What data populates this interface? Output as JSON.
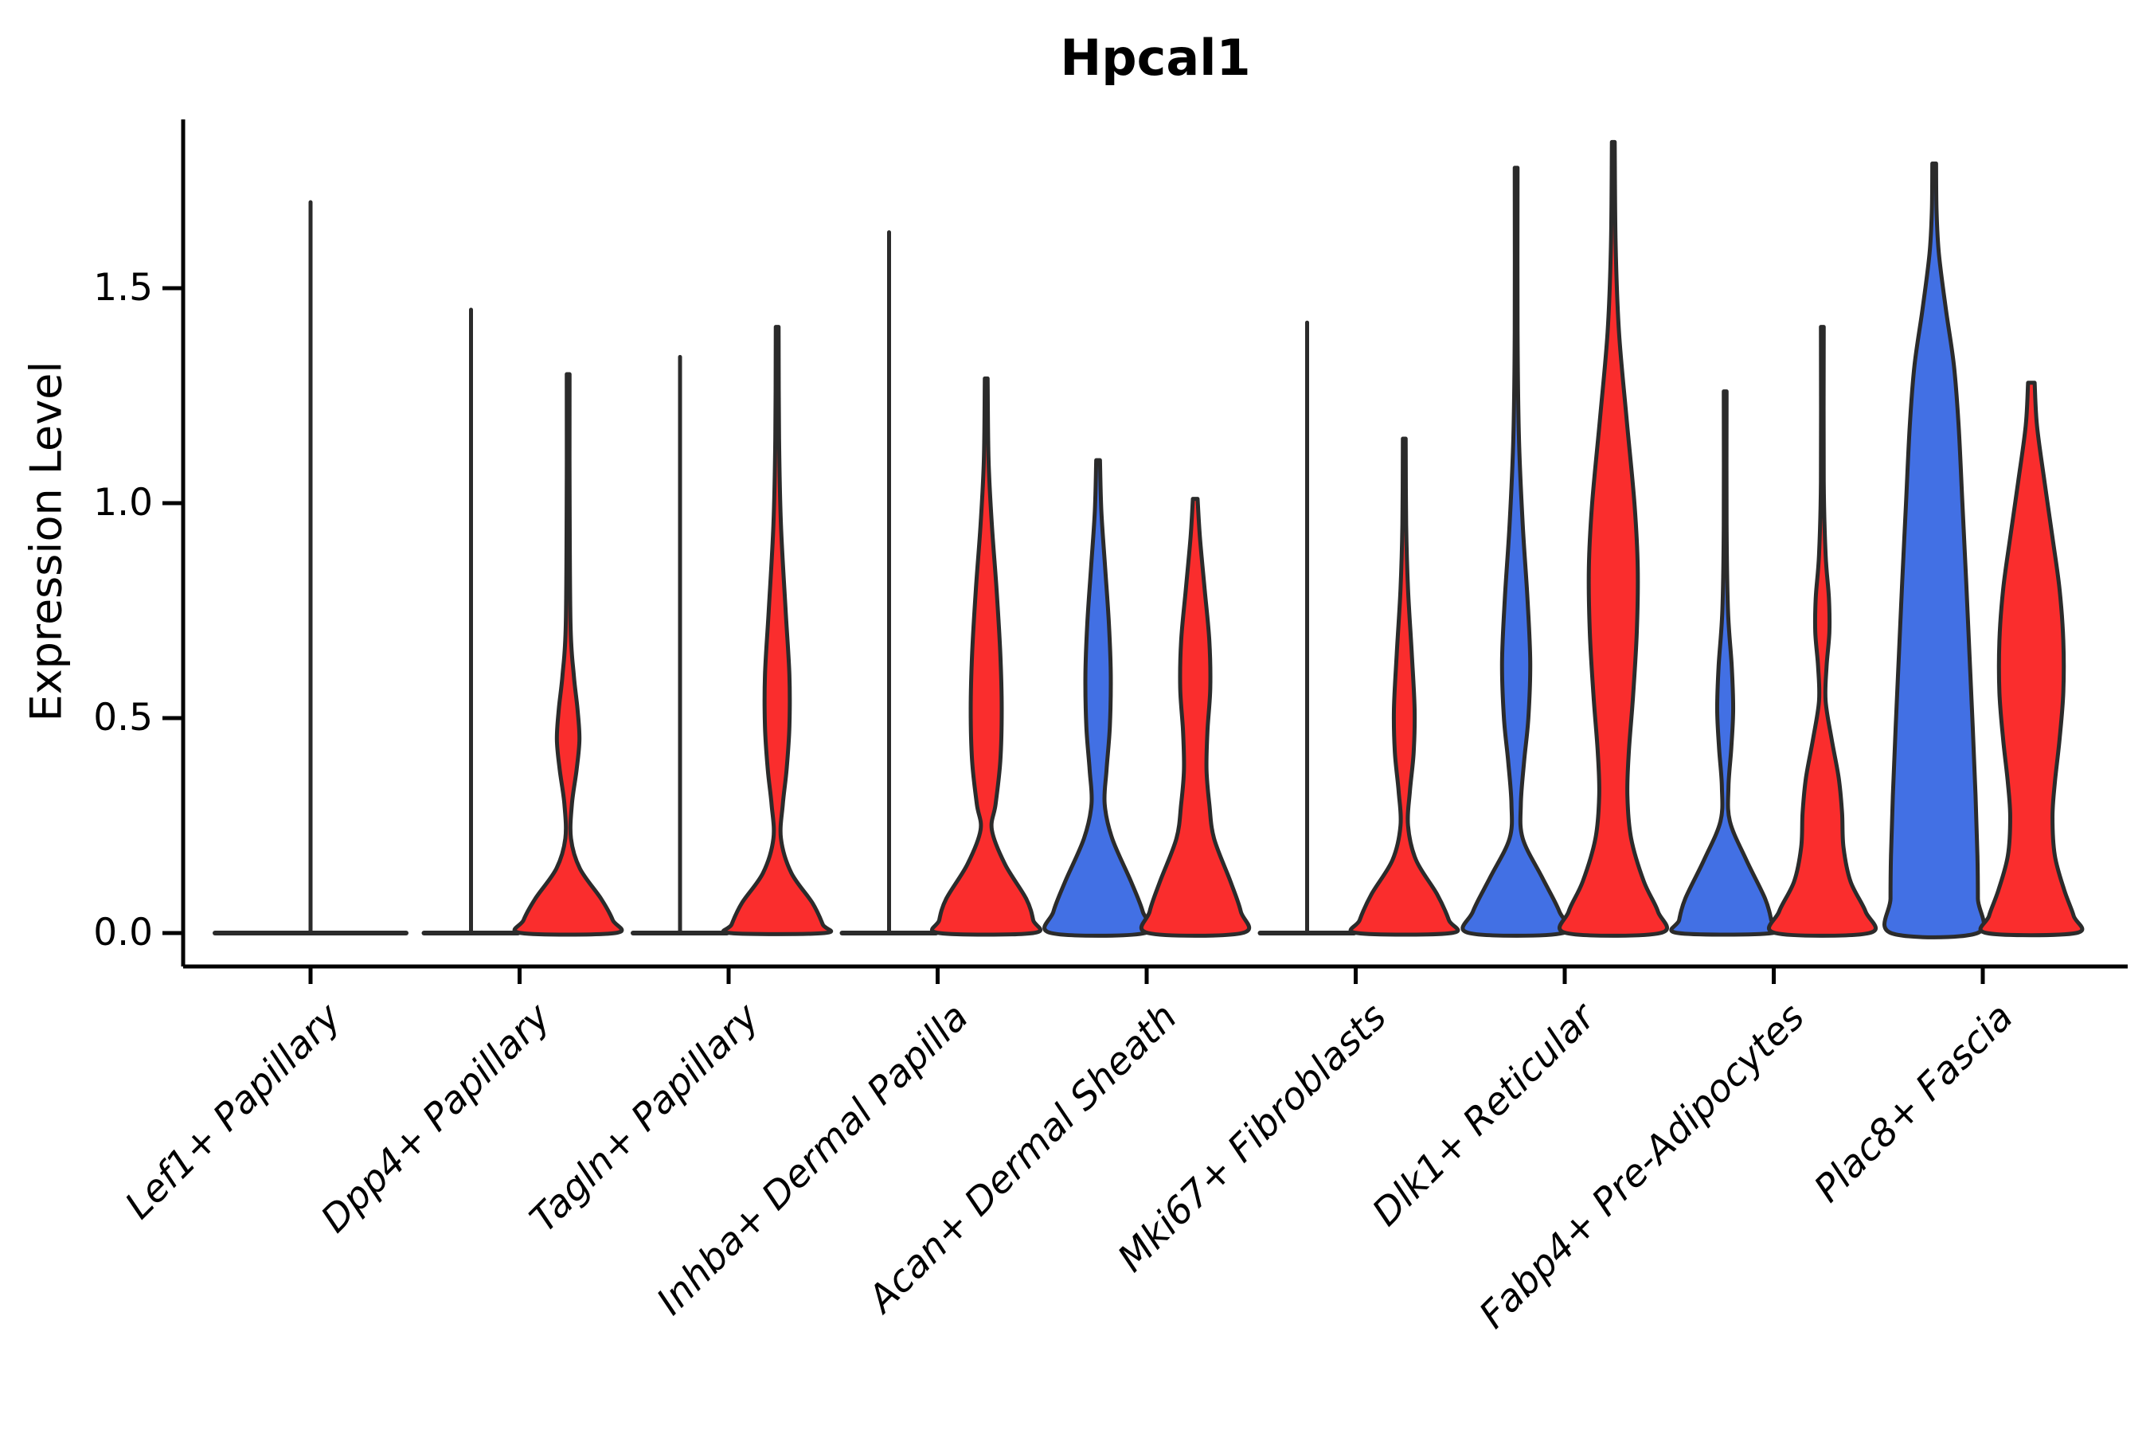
{
  "title": "Hpcal1",
  "axes": {
    "ylabel": "Expression Level",
    "xlabel": "",
    "yticks": [
      {
        "label": "0.0",
        "value": 0.0
      },
      {
        "label": "0.5",
        "value": 0.5
      },
      {
        "label": "1.0",
        "value": 1.0
      },
      {
        "label": "1.5",
        "value": 1.5
      }
    ]
  },
  "chart_data": {
    "type": "violin",
    "title": "Hpcal1",
    "ylabel": "Expression Level",
    "xlabel": "",
    "ylim": [
      -0.08,
      1.9
    ],
    "yticks": [
      0.0,
      0.5,
      1.0,
      1.5
    ],
    "legend": "none",
    "grid": false,
    "categories": [
      "Lef1+ Papillary",
      "Dpp4+ Papillary",
      "Tagln+ Papillary",
      "Inhba+ Dermal Papilla",
      "Acan+ Dermal Sheath",
      "Mki67+ Fibroblasts",
      "Dlk1+ Reticular",
      "Fabp4+ Pre-Adipocytes",
      "Plac8+ Fascia"
    ],
    "groups": [
      {
        "id": "group-blue",
        "color": "#4270E4"
      },
      {
        "id": "group-red",
        "color": "#FA2D2D"
      }
    ],
    "outline_color": "#2B2B2B",
    "violins": [
      {
        "category_index": 0,
        "group": "none",
        "style": "flat_full",
        "max": 1.7
      },
      {
        "category_index": 1,
        "group": "group-blue",
        "style": "flat",
        "max": 1.45
      },
      {
        "category_index": 1,
        "group": "group-red",
        "style": "filled",
        "max": 1.3,
        "profile": [
          [
            1.3,
            0.03
          ],
          [
            1.05,
            0.03
          ],
          [
            0.72,
            0.05
          ],
          [
            0.6,
            0.12
          ],
          [
            0.52,
            0.2
          ],
          [
            0.45,
            0.24
          ],
          [
            0.38,
            0.18
          ],
          [
            0.3,
            0.08
          ],
          [
            0.22,
            0.06
          ],
          [
            0.15,
            0.25
          ],
          [
            0.08,
            0.7
          ],
          [
            0.03,
            0.95
          ],
          [
            0.0,
            1.0
          ]
        ]
      },
      {
        "category_index": 2,
        "group": "group-blue",
        "style": "flat",
        "max": 1.34
      },
      {
        "category_index": 2,
        "group": "group-red",
        "style": "filled",
        "max": 1.41,
        "profile": [
          [
            1.41,
            0.03
          ],
          [
            1.15,
            0.04
          ],
          [
            0.95,
            0.08
          ],
          [
            0.75,
            0.18
          ],
          [
            0.6,
            0.26
          ],
          [
            0.48,
            0.26
          ],
          [
            0.38,
            0.2
          ],
          [
            0.3,
            0.12
          ],
          [
            0.22,
            0.08
          ],
          [
            0.14,
            0.3
          ],
          [
            0.07,
            0.75
          ],
          [
            0.02,
            0.97
          ],
          [
            0.0,
            1.0
          ]
        ]
      },
      {
        "category_index": 3,
        "group": "group-blue",
        "style": "flat",
        "max": 1.63
      },
      {
        "category_index": 3,
        "group": "group-red",
        "style": "filled",
        "max": 1.29,
        "profile": [
          [
            1.29,
            0.03
          ],
          [
            1.1,
            0.05
          ],
          [
            0.95,
            0.12
          ],
          [
            0.8,
            0.22
          ],
          [
            0.65,
            0.3
          ],
          [
            0.52,
            0.33
          ],
          [
            0.4,
            0.3
          ],
          [
            0.3,
            0.2
          ],
          [
            0.24,
            0.12
          ],
          [
            0.16,
            0.4
          ],
          [
            0.08,
            0.85
          ],
          [
            0.03,
            1.0
          ],
          [
            0.0,
            1.0
          ]
        ]
      },
      {
        "category_index": 4,
        "group": "group-blue",
        "style": "filled",
        "max": 1.1,
        "profile": [
          [
            1.1,
            0.04
          ],
          [
            0.98,
            0.07
          ],
          [
            0.85,
            0.15
          ],
          [
            0.72,
            0.23
          ],
          [
            0.6,
            0.27
          ],
          [
            0.48,
            0.25
          ],
          [
            0.38,
            0.18
          ],
          [
            0.3,
            0.14
          ],
          [
            0.22,
            0.3
          ],
          [
            0.12,
            0.7
          ],
          [
            0.05,
            0.95
          ],
          [
            0.0,
            1.0
          ]
        ]
      },
      {
        "category_index": 4,
        "group": "group-red",
        "style": "filled",
        "max": 1.01,
        "profile": [
          [
            1.01,
            0.05
          ],
          [
            0.92,
            0.1
          ],
          [
            0.8,
            0.2
          ],
          [
            0.68,
            0.3
          ],
          [
            0.57,
            0.32
          ],
          [
            0.47,
            0.26
          ],
          [
            0.38,
            0.24
          ],
          [
            0.3,
            0.3
          ],
          [
            0.22,
            0.4
          ],
          [
            0.12,
            0.75
          ],
          [
            0.05,
            0.97
          ],
          [
            0.0,
            1.0
          ]
        ]
      },
      {
        "category_index": 5,
        "group": "group-blue",
        "style": "flat",
        "max": 1.42
      },
      {
        "category_index": 5,
        "group": "group-red",
        "style": "filled",
        "max": 1.15,
        "profile": [
          [
            1.15,
            0.03
          ],
          [
            0.95,
            0.04
          ],
          [
            0.8,
            0.08
          ],
          [
            0.65,
            0.16
          ],
          [
            0.52,
            0.22
          ],
          [
            0.42,
            0.2
          ],
          [
            0.33,
            0.12
          ],
          [
            0.25,
            0.08
          ],
          [
            0.17,
            0.25
          ],
          [
            0.09,
            0.7
          ],
          [
            0.03,
            0.95
          ],
          [
            0.0,
            1.0
          ]
        ]
      },
      {
        "category_index": 6,
        "group": "group-blue",
        "style": "filled",
        "max": 1.78,
        "profile": [
          [
            1.78,
            0.03
          ],
          [
            1.4,
            0.03
          ],
          [
            1.15,
            0.06
          ],
          [
            0.95,
            0.14
          ],
          [
            0.78,
            0.24
          ],
          [
            0.63,
            0.3
          ],
          [
            0.5,
            0.26
          ],
          [
            0.4,
            0.17
          ],
          [
            0.3,
            0.1
          ],
          [
            0.22,
            0.14
          ],
          [
            0.13,
            0.55
          ],
          [
            0.05,
            0.92
          ],
          [
            0.0,
            1.0
          ]
        ]
      },
      {
        "category_index": 6,
        "group": "group-red",
        "style": "filled",
        "max": 1.84,
        "profile": [
          [
            1.84,
            0.03
          ],
          [
            1.6,
            0.05
          ],
          [
            1.4,
            0.12
          ],
          [
            1.2,
            0.28
          ],
          [
            1.0,
            0.45
          ],
          [
            0.85,
            0.52
          ],
          [
            0.7,
            0.5
          ],
          [
            0.55,
            0.42
          ],
          [
            0.42,
            0.33
          ],
          [
            0.32,
            0.3
          ],
          [
            0.22,
            0.38
          ],
          [
            0.12,
            0.65
          ],
          [
            0.05,
            0.95
          ],
          [
            0.0,
            1.0
          ]
        ]
      },
      {
        "category_index": 7,
        "group": "group-blue",
        "style": "filled",
        "max": 1.26,
        "profile": [
          [
            1.26,
            0.03
          ],
          [
            0.95,
            0.03
          ],
          [
            0.75,
            0.06
          ],
          [
            0.62,
            0.14
          ],
          [
            0.52,
            0.17
          ],
          [
            0.43,
            0.13
          ],
          [
            0.34,
            0.07
          ],
          [
            0.26,
            0.1
          ],
          [
            0.17,
            0.45
          ],
          [
            0.08,
            0.85
          ],
          [
            0.03,
            0.98
          ],
          [
            0.0,
            1.0
          ]
        ]
      },
      {
        "category_index": 7,
        "group": "group-red",
        "style": "filled",
        "max": 1.41,
        "profile": [
          [
            1.41,
            0.03
          ],
          [
            1.05,
            0.03
          ],
          [
            0.88,
            0.07
          ],
          [
            0.78,
            0.14
          ],
          [
            0.7,
            0.15
          ],
          [
            0.62,
            0.09
          ],
          [
            0.54,
            0.07
          ],
          [
            0.45,
            0.2
          ],
          [
            0.36,
            0.35
          ],
          [
            0.28,
            0.42
          ],
          [
            0.2,
            0.45
          ],
          [
            0.12,
            0.6
          ],
          [
            0.05,
            0.92
          ],
          [
            0.0,
            1.0
          ]
        ]
      },
      {
        "category_index": 8,
        "group": "group-blue",
        "style": "filled",
        "max": 1.79,
        "profile": [
          [
            1.79,
            0.04
          ],
          [
            1.68,
            0.05
          ],
          [
            1.58,
            0.1
          ],
          [
            1.45,
            0.25
          ],
          [
            1.32,
            0.42
          ],
          [
            1.18,
            0.52
          ],
          [
            1.0,
            0.6
          ],
          [
            0.82,
            0.68
          ],
          [
            0.65,
            0.75
          ],
          [
            0.48,
            0.82
          ],
          [
            0.32,
            0.88
          ],
          [
            0.18,
            0.92
          ],
          [
            0.08,
            0.93
          ],
          [
            0.0,
            0.92
          ]
        ]
      },
      {
        "category_index": 8,
        "group": "group-red",
        "style": "filled",
        "max": 1.28,
        "profile": [
          [
            1.28,
            0.07
          ],
          [
            1.18,
            0.12
          ],
          [
            1.05,
            0.28
          ],
          [
            0.92,
            0.45
          ],
          [
            0.8,
            0.6
          ],
          [
            0.68,
            0.68
          ],
          [
            0.56,
            0.68
          ],
          [
            0.45,
            0.6
          ],
          [
            0.35,
            0.5
          ],
          [
            0.27,
            0.45
          ],
          [
            0.18,
            0.5
          ],
          [
            0.1,
            0.7
          ],
          [
            0.04,
            0.9
          ],
          [
            0.0,
            0.95
          ]
        ]
      }
    ]
  }
}
